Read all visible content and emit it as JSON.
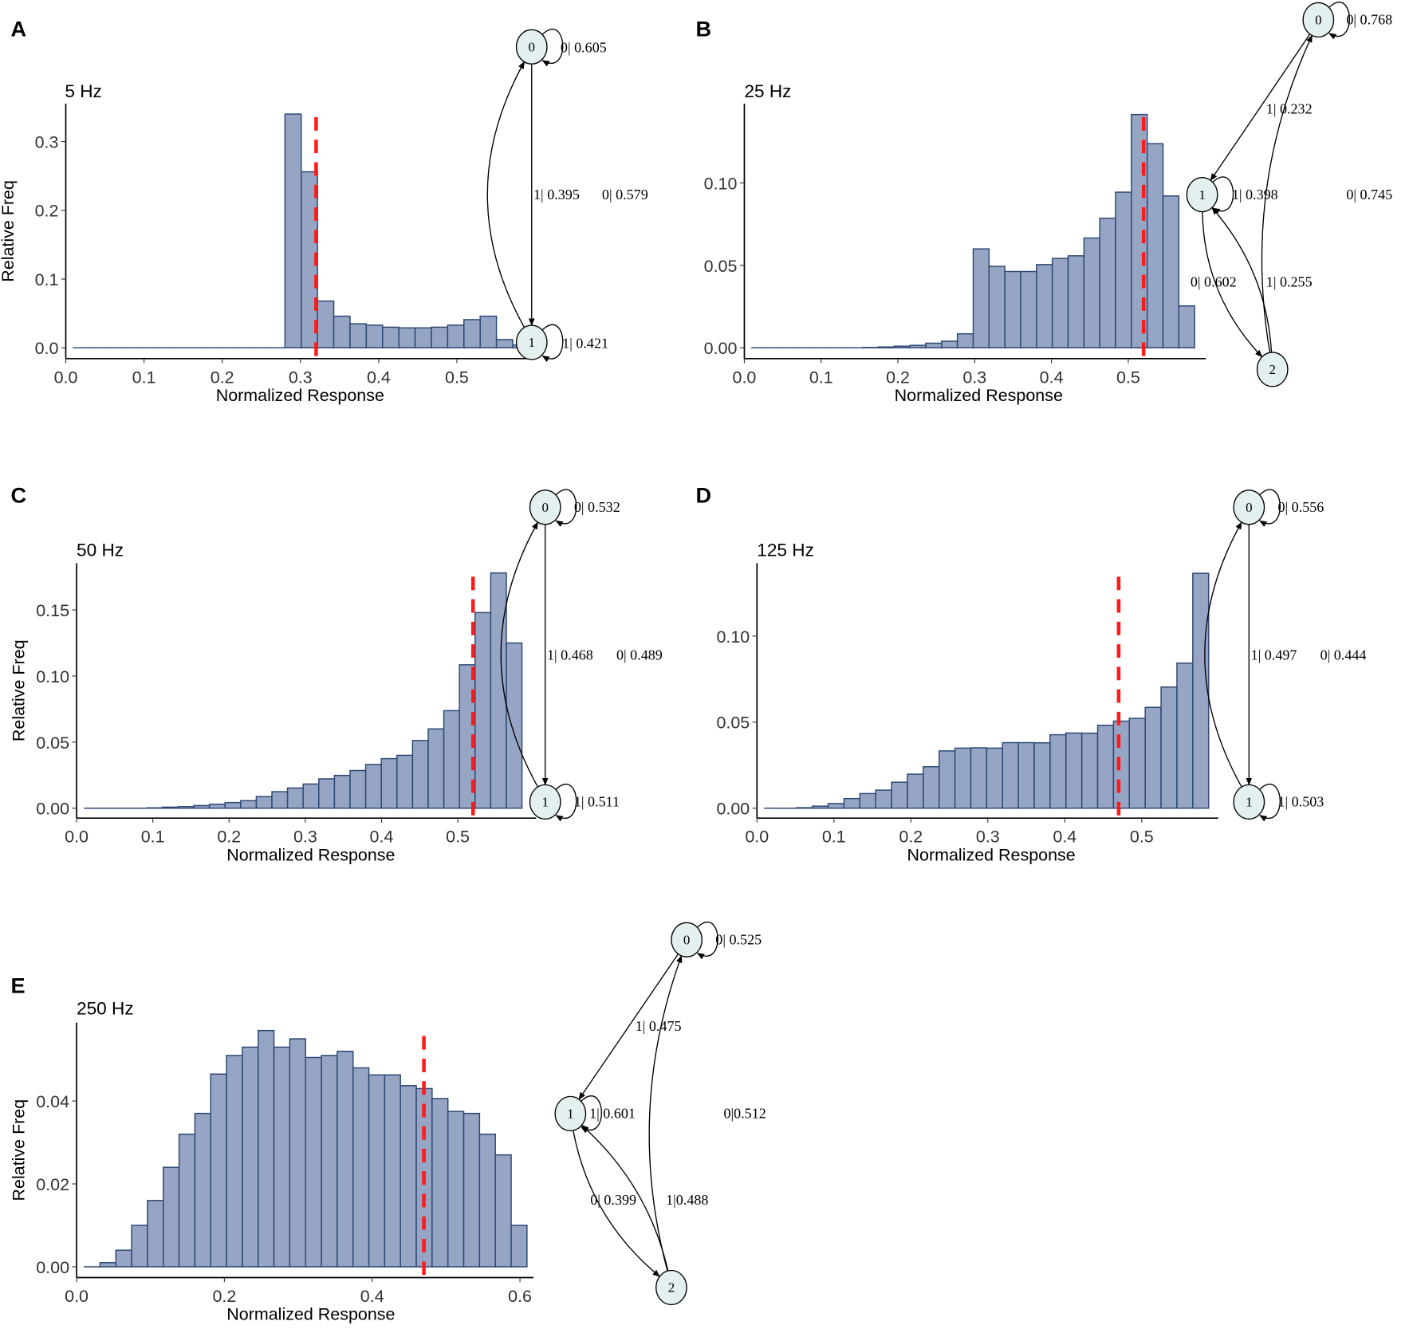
{
  "colors": {
    "bar_fill": "#97a5c4",
    "bar_stroke": "#2d4775",
    "threshold": "#ff1a1a",
    "node_fill": "#e4efef"
  },
  "chart_data": [
    {
      "type": "bar",
      "panel": "A",
      "title": "5 Hz",
      "xlabel": "Normalized Response",
      "ylabel": "Relative Freq",
      "xticks": [
        "0.0",
        "0.1",
        "0.2",
        "0.3",
        "0.4",
        "0.5"
      ],
      "xtick_values": [
        0,
        0.1,
        0.2,
        0.3,
        0.4,
        0.5
      ],
      "yticks": [
        "0.0",
        "0.1",
        "0.2",
        "0.3"
      ],
      "ytick_values": [
        0,
        0.1,
        0.2,
        0.3
      ],
      "bin_start": 0.0098,
      "bin_width": 0.0208,
      "values": [
        0,
        0,
        0,
        0,
        0,
        0,
        0,
        0,
        0,
        0,
        0,
        0,
        0,
        0.34,
        0.256,
        0.068,
        0.046,
        0.035,
        0.033,
        0.03,
        0.029,
        0.029,
        0.03,
        0.033,
        0.041,
        0.046,
        0.012,
        0.004
      ],
      "threshold": 0.32,
      "diagram": {
        "nodes": [
          "0",
          "1"
        ],
        "edges": [
          {
            "from": "0",
            "to": "0",
            "label": "0| 0.605"
          },
          {
            "from": "0",
            "to": "1",
            "label": "1| 0.395"
          },
          {
            "from": "1",
            "to": "0",
            "label": "0| 0.579"
          },
          {
            "from": "1",
            "to": "1",
            "label": "1| 0.421"
          }
        ]
      }
    },
    {
      "type": "bar",
      "panel": "B",
      "title": "25 Hz",
      "xlabel": "Normalized Response",
      "ylabel": "",
      "xticks": [
        "0.0",
        "0.1",
        "0.2",
        "0.3",
        "0.4",
        "0.5"
      ],
      "xtick_values": [
        0,
        0.1,
        0.2,
        0.3,
        0.4,
        0.5
      ],
      "yticks": [
        "0.00",
        "0.05",
        "0.10"
      ],
      "ytick_values": [
        0,
        0.05,
        0.1
      ],
      "bin_start": 0.0097,
      "bin_width": 0.0206,
      "values": [
        0,
        0,
        0,
        0,
        0,
        0,
        0,
        0.0002,
        0.0005,
        0.001,
        0.0015,
        0.0028,
        0.004,
        0.0085,
        0.06,
        0.0494,
        0.0463,
        0.0463,
        0.0505,
        0.0542,
        0.0558,
        0.0666,
        0.0786,
        0.0944,
        0.1415,
        0.1238,
        0.0921,
        0.0254
      ],
      "threshold": 0.52,
      "diagram": {
        "nodes": [
          "0",
          "1",
          "2"
        ],
        "edges": [
          {
            "from": "0",
            "to": "0",
            "label": "0| 0.768"
          },
          {
            "from": "0",
            "to": "1",
            "label": "1| 0.232"
          },
          {
            "from": "1",
            "to": "1",
            "label": "1| 0.398"
          },
          {
            "from": "1",
            "to": "2",
            "label": "0| 0.602"
          },
          {
            "from": "2",
            "to": "1",
            "label": "1| 0.255"
          },
          {
            "from": "2",
            "to": "0",
            "label": "0| 0.745"
          }
        ]
      }
    },
    {
      "type": "bar",
      "panel": "C",
      "title": "50 Hz",
      "xlabel": "Normalized Response",
      "ylabel": "Relative Freq",
      "xticks": [
        "0.0",
        "0.1",
        "0.2",
        "0.3",
        "0.4",
        "0.5"
      ],
      "xtick_values": [
        0,
        0.1,
        0.2,
        0.3,
        0.4,
        0.5
      ],
      "yticks": [
        "0.00",
        "0.05",
        "0.10",
        "0.15"
      ],
      "ytick_values": [
        0,
        0.05,
        0.1,
        0.15
      ],
      "bin_start": 0.0102,
      "bin_width": 0.0205,
      "values": [
        0,
        0,
        0,
        0,
        0.0003,
        0.0008,
        0.0012,
        0.002,
        0.003,
        0.0043,
        0.0057,
        0.0088,
        0.0125,
        0.0153,
        0.0183,
        0.0222,
        0.0248,
        0.0285,
        0.0331,
        0.0375,
        0.04,
        0.0512,
        0.06,
        0.0738,
        0.1085,
        0.148,
        0.178,
        0.125
      ],
      "threshold": 0.52,
      "diagram": {
        "nodes": [
          "0",
          "1"
        ],
        "edges": [
          {
            "from": "0",
            "to": "0",
            "label": "0| 0.532"
          },
          {
            "from": "0",
            "to": "1",
            "label": "1| 0.468"
          },
          {
            "from": "1",
            "to": "0",
            "label": "0| 0.489"
          },
          {
            "from": "1",
            "to": "1",
            "label": "1| 0.511"
          }
        ]
      }
    },
    {
      "type": "bar",
      "panel": "D",
      "title": "125 Hz",
      "xlabel": "Normalized Response",
      "ylabel": "",
      "xticks": [
        "0.0",
        "0.1",
        "0.2",
        "0.3",
        "0.4",
        "0.5"
      ],
      "xtick_values": [
        0,
        0.1,
        0.2,
        0.3,
        0.4,
        0.5
      ],
      "yticks": [
        "0.00",
        "0.05",
        "0.10"
      ],
      "ytick_values": [
        0,
        0.05,
        0.1
      ],
      "bin_start": 0.0101,
      "bin_width": 0.0206,
      "values": [
        0,
        0,
        0.0003,
        0.0012,
        0.0027,
        0.0056,
        0.0085,
        0.0105,
        0.0151,
        0.0198,
        0.0241,
        0.0333,
        0.0349,
        0.0351,
        0.0349,
        0.0381,
        0.0381,
        0.038,
        0.0427,
        0.0437,
        0.0436,
        0.0482,
        0.0506,
        0.0522,
        0.0586,
        0.0704,
        0.0843,
        0.1365
      ],
      "threshold": 0.47,
      "diagram": {
        "nodes": [
          "0",
          "1"
        ],
        "edges": [
          {
            "from": "0",
            "to": "0",
            "label": "0| 0.556"
          },
          {
            "from": "0",
            "to": "1",
            "label": "1| 0.497"
          },
          {
            "from": "1",
            "to": "0",
            "label": "0| 0.444"
          },
          {
            "from": "1",
            "to": "1",
            "label": "1| 0.503"
          }
        ]
      }
    },
    {
      "type": "bar",
      "panel": "E",
      "title": "250 Hz",
      "xlabel": "Normalized Response",
      "ylabel": "Relative Freq",
      "xticks": [
        "0.0",
        "0.2",
        "0.4",
        "0.6"
      ],
      "xtick_values": [
        0,
        0.2,
        0.4,
        0.6
      ],
      "yticks": [
        "0.00",
        "0.02",
        "0.04"
      ],
      "ytick_values": [
        0,
        0.02,
        0.04
      ],
      "bin_start": 0.0103,
      "bin_width": 0.0214,
      "values": [
        0,
        0.001,
        0.004,
        0.01,
        0.016,
        0.024,
        0.032,
        0.037,
        0.0465,
        0.051,
        0.053,
        0.057,
        0.053,
        0.055,
        0.0505,
        0.051,
        0.052,
        0.048,
        0.0463,
        0.0463,
        0.0437,
        0.043,
        0.0406,
        0.0375,
        0.037,
        0.032,
        0.027,
        0.01
      ],
      "threshold": 0.47,
      "diagram": {
        "nodes": [
          "0",
          "1",
          "2"
        ],
        "edges": [
          {
            "from": "0",
            "to": "0",
            "label": "0| 0.525"
          },
          {
            "from": "0",
            "to": "1",
            "label": "1| 0.475"
          },
          {
            "from": "1",
            "to": "1",
            "label": "1| 0.601"
          },
          {
            "from": "1",
            "to": "2",
            "label": "0| 0.399"
          },
          {
            "from": "2",
            "to": "1",
            "label": "1|0.488"
          },
          {
            "from": "2",
            "to": "0",
            "label": "0|0.512"
          }
        ]
      }
    }
  ]
}
